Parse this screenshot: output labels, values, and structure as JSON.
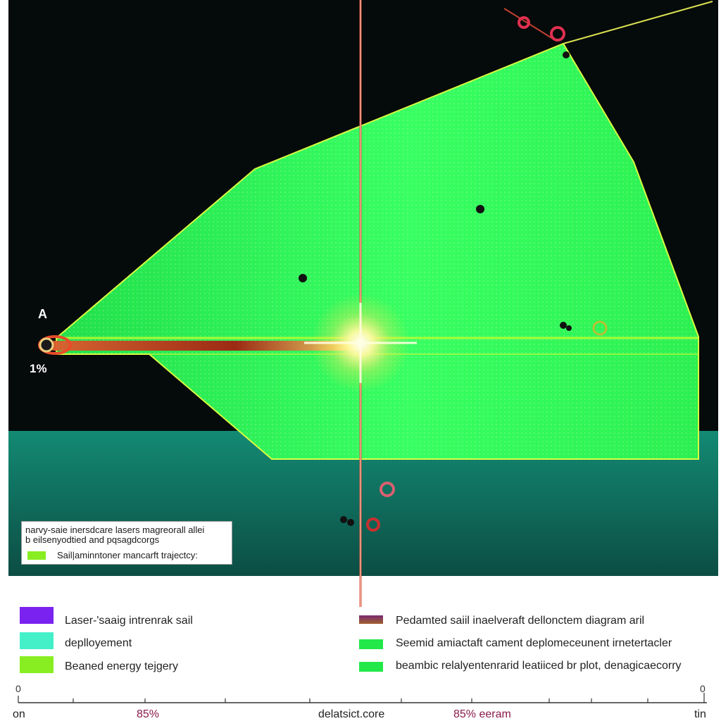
{
  "diagram": {
    "top_label": "A",
    "start_percent": "1%",
    "inset_legend": {
      "line1": "narvy-saie inersdcare lasers magreorall allei",
      "line2": "b eilsenyodtied and pqsagdcorgs",
      "item_label": "Sail|aminntoner mancarft trajectcy:",
      "item_color": "#88ee22"
    }
  },
  "legend": {
    "left": [
      {
        "label": "Laser-'saaig intrenrak sail",
        "color": "#7a22f0"
      },
      {
        "label": "deplloyement",
        "color": "#44f0c8"
      },
      {
        "label": "Beaned energy tejgery",
        "color": "#88ee22"
      }
    ],
    "right": [
      {
        "label": "Pedamted saiil inaelveraft dellonctem diagram aril",
        "color": "#8a4a30"
      },
      {
        "label": "Seemid amiactaft  cament deplomeceunent irnetertacler",
        "color": "#22e84a"
      },
      {
        "label": "beambic relalyentenrarid leatiiced br plot, denagicaecorry",
        "color": "#22e84a"
      }
    ]
  },
  "axis": {
    "start_label": "0",
    "end_label": "0",
    "tick_labels": [
      "on",
      "85%",
      "delatsict.core",
      "85%  eeram",
      "tin"
    ]
  },
  "colors": {
    "space": "#050a0a",
    "ground": "#115e52",
    "sail": "#33ff55",
    "beam": "#c8401e",
    "flare": "#ffffcc"
  }
}
